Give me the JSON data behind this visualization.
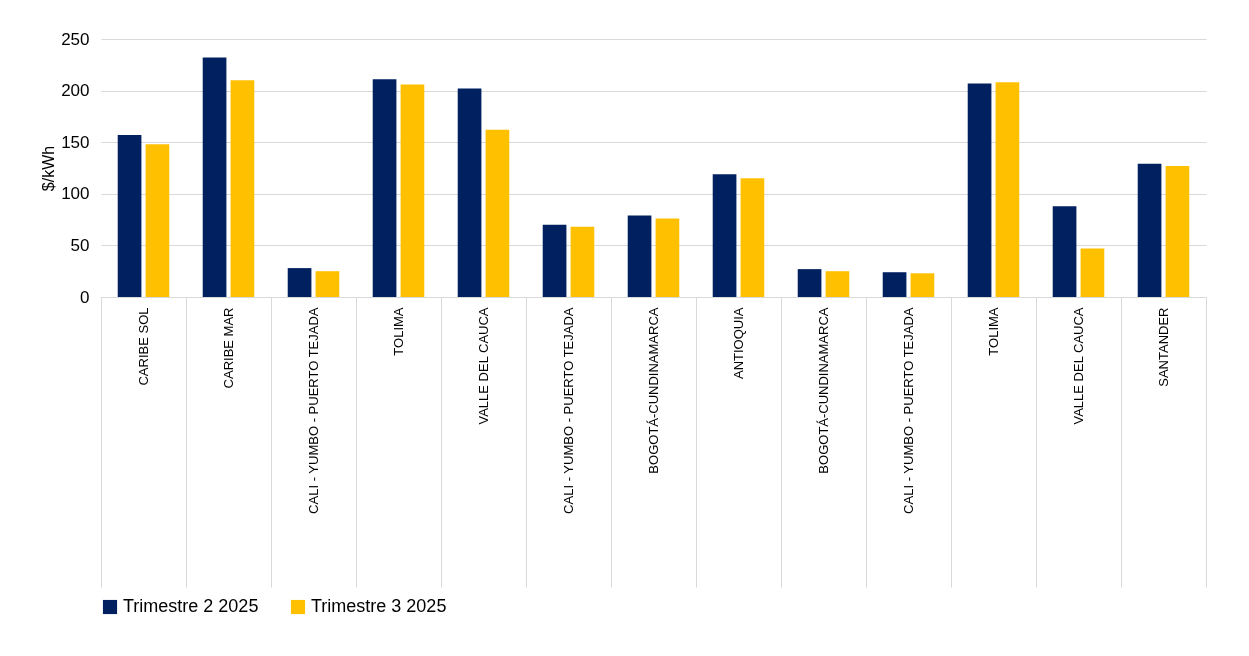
{
  "chart_data": {
    "type": "bar",
    "ylabel": "$/kWh",
    "categories": [
      "CARIBE SOL",
      "CARIBE MAR",
      "CALI - YUMBO - PUERTO TEJADA",
      "TOLIMA",
      "VALLE DEL CAUCA",
      "CALI - YUMBO - PUERTO TEJADA",
      "BOGOTÁ-CUNDINAMARCA",
      "ANTIOQUIA",
      "BOGOTÁ-CUNDINAMARCA",
      "CALI - YUMBO - PUERTO TEJADA",
      "TOLIMA",
      "VALLE DEL CAUCA",
      "SANTANDER"
    ],
    "series": [
      {
        "name": "Trimestre 2 2025",
        "color": "#002060",
        "values": [
          157,
          232,
          28,
          211,
          202,
          70,
          79,
          119,
          27,
          24,
          207,
          88,
          129
        ]
      },
      {
        "name": "Trimestre 3 2025",
        "color": "#ffc000",
        "values": [
          148,
          210,
          25,
          206,
          162,
          68,
          76,
          115,
          25,
          23,
          208,
          47,
          127
        ]
      }
    ],
    "ylim": [
      0,
      250
    ],
    "yticks": [
      0,
      50,
      100,
      150,
      200,
      250
    ],
    "grid": "y",
    "legend": "bottom"
  }
}
